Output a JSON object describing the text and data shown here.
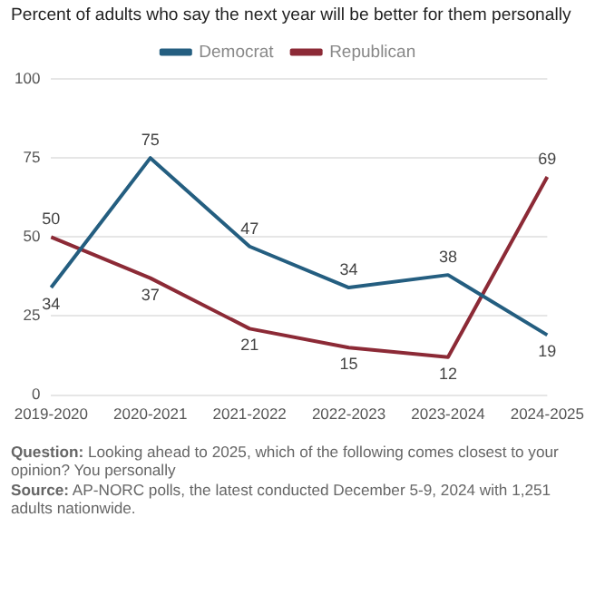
{
  "chart_data": {
    "type": "line",
    "title": "Percent of adults who say the next year will be better for them personally",
    "categories": [
      "2019-2020",
      "2020-2021",
      "2021-2022",
      "2022-2023",
      "2023-2024",
      "2024-2025"
    ],
    "series": [
      {
        "name": "Democrat",
        "color": "#245e80",
        "values": [
          34,
          75,
          47,
          34,
          38,
          19
        ]
      },
      {
        "name": "Republican",
        "color": "#8c2a36",
        "values": [
          50,
          37,
          21,
          15,
          12,
          69
        ]
      }
    ],
    "ylim": [
      0,
      100
    ],
    "yticks": [
      0,
      25,
      50,
      75,
      100
    ],
    "grid": "y",
    "legend": "top",
    "marker": "none",
    "line_style": "solid",
    "data_labels": true,
    "annotations": [
      "Question: Looking ahead to 2025, which of the following comes closest to your opinion? You personally",
      "Source: AP-NORC polls, the latest conducted December 5-9, 2024 with 1,251 adults nationwide."
    ]
  }
}
